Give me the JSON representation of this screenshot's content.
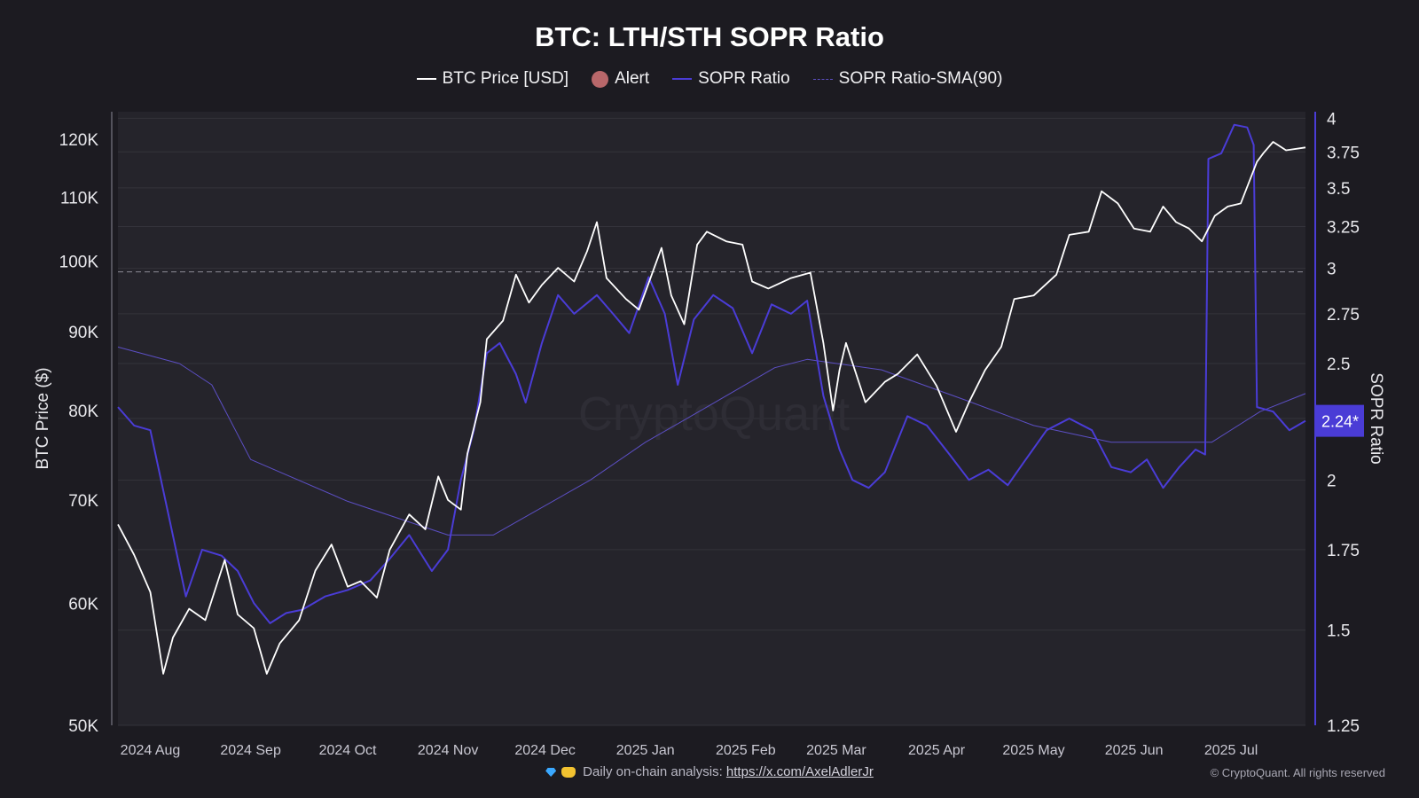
{
  "chart_data": {
    "type": "line",
    "title": "BTC: LTH/STH SOPR Ratio",
    "legend": [
      {
        "label": "BTC Price [USD]",
        "color": "#ffffff",
        "style": "line"
      },
      {
        "label": "Alert",
        "color": "#b8676a",
        "style": "dot"
      },
      {
        "label": "SOPR Ratio",
        "color": "#4a3cd6",
        "style": "line"
      },
      {
        "label": "SOPR Ratio-SMA(90)",
        "color": "#5c4fc4",
        "style": "thin"
      }
    ],
    "legend_position": "top-center",
    "left_axis": {
      "label": "BTC Price ($)",
      "scale": "log",
      "range": [
        50000,
        125000
      ],
      "ticks": [
        50000,
        60000,
        70000,
        80000,
        90000,
        100000,
        110000,
        120000
      ],
      "tick_labels": [
        "50K",
        "60K",
        "70K",
        "80K",
        "90K",
        "100K",
        "110K",
        "120K"
      ]
    },
    "right_axis": {
      "label": "SOPR Ratio",
      "scale": "log",
      "range": [
        1.25,
        4.05
      ],
      "ticks": [
        1.25,
        1.5,
        1.75,
        2,
        2.25,
        2.5,
        2.75,
        3,
        3.25,
        3.5,
        3.75,
        4
      ],
      "tick_labels": [
        "1.25",
        "1.5",
        "1.75",
        "2",
        "2.24*",
        "2.5",
        "2.75",
        "3",
        "3.25",
        "3.5",
        "3.75",
        "4"
      ],
      "current_value_label": "2.24*"
    },
    "x_axis": {
      "range": [
        "2024-07-22",
        "2025-07-24"
      ],
      "ticks": [
        "2024-08-01",
        "2024-09-01",
        "2024-10-01",
        "2024-11-01",
        "2024-12-01",
        "2025-01-01",
        "2025-02-01",
        "2025-03-01",
        "2025-04-01",
        "2025-05-01",
        "2025-06-01",
        "2025-07-01"
      ],
      "tick_labels": [
        "2024 Aug",
        "2024 Sep",
        "2024 Oct",
        "2024 Nov",
        "2024 Dec",
        "2025 Jan",
        "2025 Feb",
        "2025 Mar",
        "2025 Apr",
        "2025 May",
        "2025 Jun",
        "2025 Jul"
      ]
    },
    "reference_line": {
      "axis": "right",
      "value": 2.98,
      "style": "dashed"
    },
    "grid": true,
    "watermark": "CryptoQuant",
    "series": [
      {
        "name": "BTC Price [USD]",
        "axis": "left",
        "color": "#ffffff",
        "x": [
          "2024-07-22",
          "2024-07-27",
          "2024-08-01",
          "2024-08-05",
          "2024-08-08",
          "2024-08-13",
          "2024-08-18",
          "2024-08-24",
          "2024-08-28",
          "2024-09-02",
          "2024-09-06",
          "2024-09-10",
          "2024-09-16",
          "2024-09-21",
          "2024-09-26",
          "2024-10-01",
          "2024-10-05",
          "2024-10-10",
          "2024-10-14",
          "2024-10-20",
          "2024-10-25",
          "2024-10-29",
          "2024-11-01",
          "2024-11-05",
          "2024-11-07",
          "2024-11-11",
          "2024-11-13",
          "2024-11-18",
          "2024-11-22",
          "2024-11-26",
          "2024-11-30",
          "2024-12-05",
          "2024-12-10",
          "2024-12-14",
          "2024-12-17",
          "2024-12-20",
          "2024-12-26",
          "2024-12-30",
          "2025-01-06",
          "2025-01-09",
          "2025-01-13",
          "2025-01-17",
          "2025-01-20",
          "2025-01-26",
          "2025-01-31",
          "2025-02-03",
          "2025-02-08",
          "2025-02-15",
          "2025-02-21",
          "2025-02-25",
          "2025-02-28",
          "2025-03-02",
          "2025-03-04",
          "2025-03-10",
          "2025-03-16",
          "2025-03-20",
          "2025-03-26",
          "2025-04-01",
          "2025-04-07",
          "2025-04-11",
          "2025-04-16",
          "2025-04-21",
          "2025-04-25",
          "2025-05-01",
          "2025-05-08",
          "2025-05-12",
          "2025-05-18",
          "2025-05-22",
          "2025-05-27",
          "2025-06-01",
          "2025-06-06",
          "2025-06-10",
          "2025-06-14",
          "2025-06-18",
          "2025-06-22",
          "2025-06-26",
          "2025-06-30",
          "2025-07-04",
          "2025-07-09",
          "2025-07-11",
          "2025-07-14",
          "2025-07-18",
          "2025-07-24"
        ],
        "values": [
          67500,
          64500,
          61000,
          54000,
          57000,
          59500,
          58500,
          64000,
          59000,
          57800,
          54000,
          56500,
          58500,
          63000,
          65500,
          61500,
          62000,
          60500,
          65000,
          68500,
          67000,
          72500,
          70000,
          69000,
          75000,
          81000,
          89000,
          91500,
          98000,
          94000,
          96500,
          99000,
          97000,
          101500,
          106000,
          97500,
          94500,
          93000,
          102000,
          95000,
          91000,
          102500,
          104500,
          103000,
          102500,
          97000,
          96000,
          97500,
          98300,
          88500,
          80000,
          85000,
          88500,
          81000,
          83500,
          84500,
          87000,
          83000,
          77500,
          81000,
          85000,
          88000,
          94500,
          95000,
          98000,
          104000,
          104500,
          111000,
          109000,
          105000,
          104500,
          108500,
          106000,
          105000,
          103000,
          107000,
          108500,
          109000,
          116000,
          117500,
          119500,
          118000,
          118500
        ]
      },
      {
        "name": "SOPR Ratio",
        "axis": "right",
        "color": "#4a3cd6",
        "x": [
          "2024-07-22",
          "2024-07-27",
          "2024-08-01",
          "2024-08-07",
          "2024-08-12",
          "2024-08-17",
          "2024-08-23",
          "2024-08-28",
          "2024-09-02",
          "2024-09-07",
          "2024-09-12",
          "2024-09-17",
          "2024-09-24",
          "2024-10-01",
          "2024-10-08",
          "2024-10-14",
          "2024-10-20",
          "2024-10-27",
          "2024-11-01",
          "2024-11-05",
          "2024-11-09",
          "2024-11-13",
          "2024-11-17",
          "2024-11-22",
          "2024-11-25",
          "2024-11-30",
          "2024-12-05",
          "2024-12-10",
          "2024-12-17",
          "2024-12-22",
          "2024-12-27",
          "2025-01-02",
          "2025-01-07",
          "2025-01-11",
          "2025-01-16",
          "2025-01-22",
          "2025-01-28",
          "2025-02-03",
          "2025-02-09",
          "2025-02-15",
          "2025-02-20",
          "2025-02-25",
          "2025-03-02",
          "2025-03-06",
          "2025-03-11",
          "2025-03-16",
          "2025-03-23",
          "2025-03-29",
          "2025-04-05",
          "2025-04-11",
          "2025-04-17",
          "2025-04-23",
          "2025-04-28",
          "2025-05-05",
          "2025-05-12",
          "2025-05-19",
          "2025-05-25",
          "2025-05-31",
          "2025-06-05",
          "2025-06-10",
          "2025-06-15",
          "2025-06-20",
          "2025-06-23",
          "2025-06-24",
          "2025-06-28",
          "2025-07-02",
          "2025-07-06",
          "2025-07-08",
          "2025-07-09",
          "2025-07-14",
          "2025-07-19",
          "2025-07-24"
        ],
        "values": [
          2.3,
          2.22,
          2.2,
          1.85,
          1.6,
          1.75,
          1.73,
          1.68,
          1.58,
          1.52,
          1.55,
          1.56,
          1.6,
          1.62,
          1.65,
          1.72,
          1.8,
          1.68,
          1.75,
          2.0,
          2.2,
          2.55,
          2.6,
          2.45,
          2.32,
          2.6,
          2.85,
          2.75,
          2.85,
          2.75,
          2.65,
          2.95,
          2.75,
          2.4,
          2.72,
          2.85,
          2.78,
          2.55,
          2.8,
          2.75,
          2.82,
          2.35,
          2.12,
          2.0,
          1.97,
          2.03,
          2.26,
          2.22,
          2.1,
          2.0,
          2.04,
          1.98,
          2.07,
          2.2,
          2.25,
          2.2,
          2.05,
          2.03,
          2.08,
          1.97,
          2.05,
          2.12,
          2.1,
          3.7,
          3.74,
          3.95,
          3.93,
          3.8,
          2.3,
          2.28,
          2.2,
          2.24
        ]
      },
      {
        "name": "SOPR Ratio-SMA(90)",
        "axis": "right",
        "color": "#5c4fc4",
        "x": [
          "2024-07-22",
          "2024-08-10",
          "2024-08-20",
          "2024-09-01",
          "2024-10-01",
          "2024-11-01",
          "2024-11-15",
          "2024-12-15",
          "2025-01-01",
          "2025-01-20",
          "2025-02-10",
          "2025-02-20",
          "2025-03-15",
          "2025-04-10",
          "2025-05-01",
          "2025-05-25",
          "2025-06-25",
          "2025-07-10",
          "2025-07-24"
        ],
        "values": [
          2.58,
          2.5,
          2.4,
          2.08,
          1.92,
          1.8,
          1.8,
          2.0,
          2.15,
          2.3,
          2.48,
          2.52,
          2.47,
          2.33,
          2.22,
          2.15,
          2.15,
          2.28,
          2.36
        ]
      }
    ],
    "alerts": []
  },
  "footer": {
    "text": "Daily on-chain analysis: ",
    "link": "https://x.com/AxelAdlerJr",
    "copyright": "© CryptoQuant. All rights reserved"
  }
}
